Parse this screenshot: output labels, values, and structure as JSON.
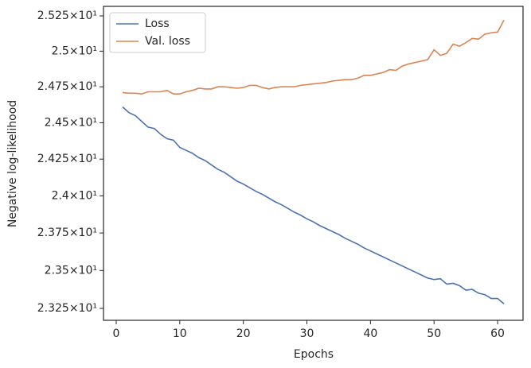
{
  "chart_data": {
    "type": "line",
    "xlabel": "Epochs",
    "ylabel": "Negative log-likelihood",
    "x": [
      1,
      2,
      3,
      4,
      5,
      6,
      7,
      8,
      9,
      10,
      11,
      12,
      13,
      14,
      15,
      16,
      17,
      18,
      19,
      20,
      21,
      22,
      23,
      24,
      25,
      26,
      27,
      28,
      29,
      30,
      31,
      32,
      33,
      34,
      35,
      36,
      37,
      38,
      39,
      40,
      41,
      42,
      43,
      44,
      45,
      46,
      47,
      48,
      49,
      50,
      51,
      52,
      53,
      54,
      55,
      56,
      57,
      58,
      59,
      60,
      61
    ],
    "series": [
      {
        "name": "Loss",
        "color": "#4c72b0",
        "values": [
          24.61,
          24.57,
          24.55,
          24.51,
          24.47,
          24.46,
          24.42,
          24.39,
          24.38,
          24.33,
          24.31,
          24.29,
          24.26,
          24.24,
          24.21,
          24.18,
          24.16,
          24.13,
          24.1,
          24.08,
          24.055,
          24.03,
          24.01,
          23.985,
          23.96,
          23.94,
          23.915,
          23.89,
          23.87,
          23.845,
          23.825,
          23.8,
          23.78,
          23.76,
          23.74,
          23.715,
          23.695,
          23.675,
          23.65,
          23.63,
          23.61,
          23.59,
          23.57,
          23.55,
          23.53,
          23.51,
          23.49,
          23.47,
          23.45,
          23.44,
          23.445,
          23.41,
          23.415,
          23.4,
          23.37,
          23.375,
          23.35,
          23.34,
          23.315,
          23.315,
          23.28
        ]
      },
      {
        "name": "Val. loss",
        "color": "#dd8452",
        "values": [
          24.71,
          24.705,
          24.705,
          24.7,
          24.715,
          24.715,
          24.715,
          24.725,
          24.7,
          24.7,
          24.715,
          24.725,
          24.74,
          24.735,
          24.735,
          24.75,
          24.75,
          24.745,
          24.74,
          24.745,
          24.76,
          24.76,
          24.745,
          24.735,
          24.745,
          24.75,
          24.75,
          24.75,
          24.76,
          24.765,
          24.77,
          24.775,
          24.78,
          24.79,
          24.795,
          24.8,
          24.8,
          24.81,
          24.83,
          24.83,
          24.84,
          24.85,
          24.87,
          24.865,
          24.895,
          24.91,
          24.92,
          24.93,
          24.94,
          25.01,
          24.97,
          24.985,
          25.05,
          25.035,
          25.06,
          25.09,
          25.085,
          25.12,
          25.13,
          25.135,
          25.22
        ]
      }
    ],
    "xlim": [
      -2,
      64
    ],
    "xticks": [
      0,
      10,
      20,
      30,
      40,
      50,
      60
    ],
    "ylim": [
      23.172,
      25.318
    ],
    "log_y": true,
    "yticks": [
      {
        "value": 23.25,
        "label": "2.325×10¹"
      },
      {
        "value": 23.5,
        "label": "2.35×10¹"
      },
      {
        "value": 23.75,
        "label": "2.375×10¹"
      },
      {
        "value": 24,
        "label": "2.4×10¹"
      },
      {
        "value": 24.25,
        "label": "2.425×10¹"
      },
      {
        "value": 24.5,
        "label": "2.45×10¹"
      },
      {
        "value": 24.75,
        "label": "2.475×10¹"
      },
      {
        "value": 25,
        "label": "2.5×10¹"
      },
      {
        "value": 25.25,
        "label": "2.525×10¹"
      }
    ],
    "legend": "upper left"
  }
}
